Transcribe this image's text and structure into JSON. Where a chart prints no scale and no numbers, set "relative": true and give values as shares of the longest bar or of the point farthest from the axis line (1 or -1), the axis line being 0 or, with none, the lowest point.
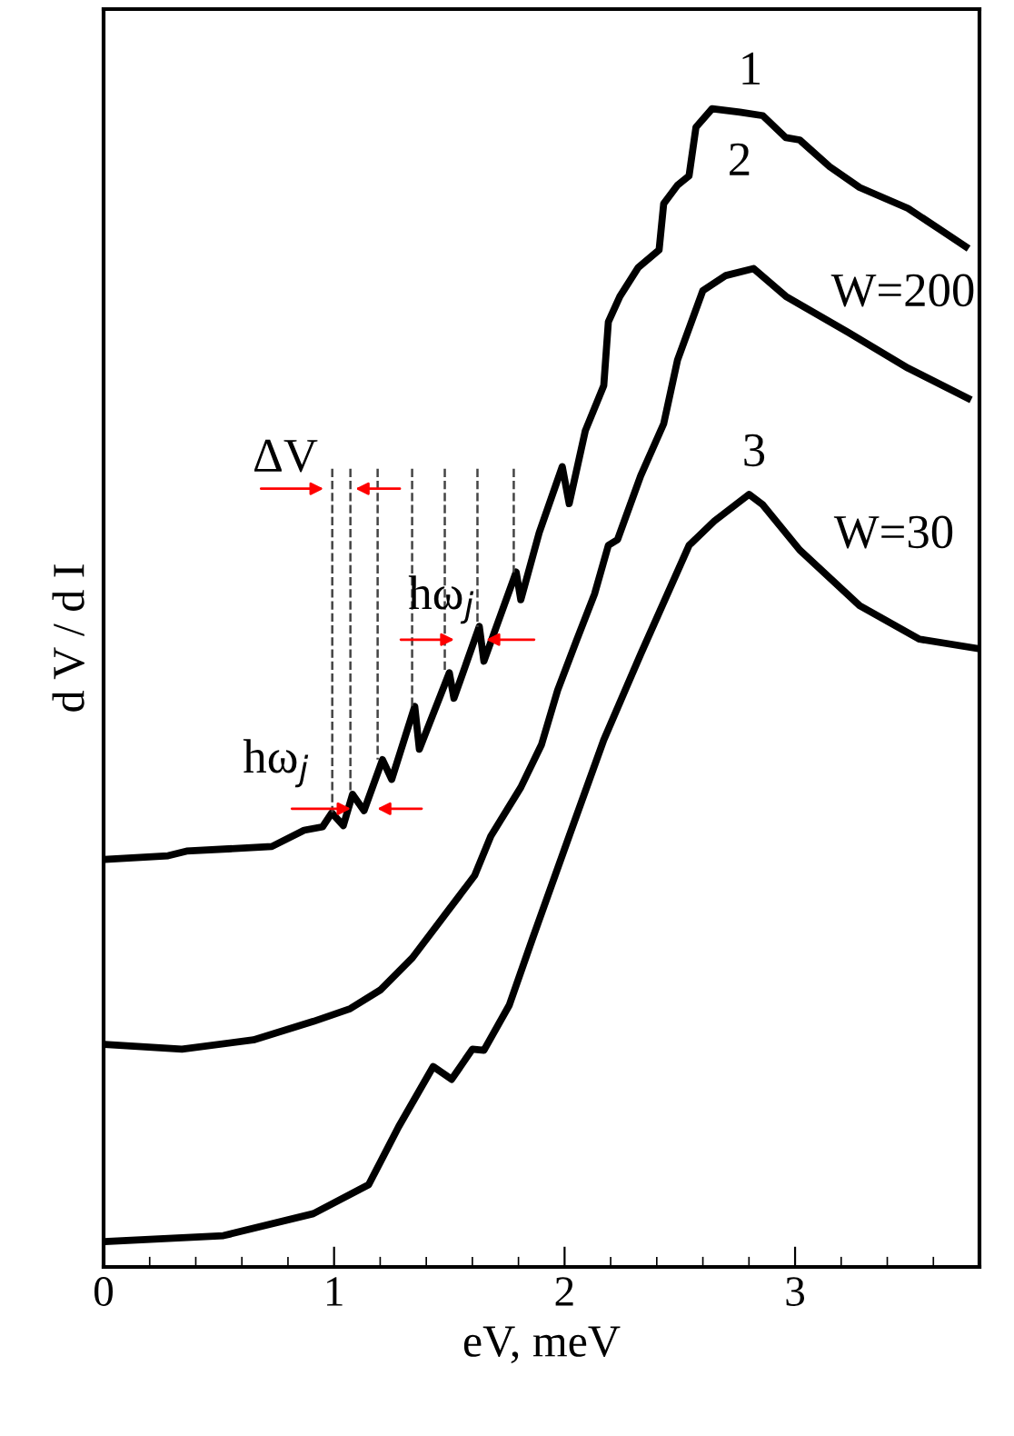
{
  "chart_data": {
    "type": "line",
    "relative": true,
    "xlabel": "eV, meV",
    "ylabel": "d V / d I",
    "xlim": [
      0,
      3.8
    ],
    "xticks": [
      0,
      1,
      2,
      3
    ],
    "tick_labels": "x",
    "grid": false,
    "series": [
      {
        "color": "#000000",
        "x": [
          0.02,
          0.28,
          0.36,
          0.73,
          0.87,
          0.95,
          0.99,
          1.04,
          1.08,
          1.13,
          1.21,
          1.25,
          1.35,
          1.37,
          1.5,
          1.52,
          1.63,
          1.65,
          1.79,
          1.81,
          1.89,
          1.99,
          2.02,
          2.09,
          2.17,
          2.19,
          2.24,
          2.32,
          2.41,
          2.43,
          2.49,
          2.54,
          2.57,
          2.64,
          2.76,
          2.86,
          2.96,
          3.02,
          3.15,
          3.28,
          3.49,
          3.74
        ],
        "values": [
          0.352,
          0.355,
          0.359,
          0.363,
          0.377,
          0.38,
          0.392,
          0.381,
          0.408,
          0.394,
          0.438,
          0.421,
          0.484,
          0.447,
          0.513,
          0.491,
          0.553,
          0.523,
          0.6,
          0.576,
          0.634,
          0.691,
          0.659,
          0.722,
          0.761,
          0.816,
          0.838,
          0.863,
          0.878,
          0.918,
          0.934,
          0.942,
          0.984,
          1.0,
          0.997,
          0.994,
          0.975,
          0.973,
          0.95,
          0.932,
          0.914,
          0.881
        ]
      },
      {
        "color": "#000000",
        "x": [
          0.02,
          0.34,
          0.65,
          0.91,
          1.07,
          1.2,
          1.34,
          1.5,
          1.61,
          1.68,
          1.81,
          1.9,
          1.97,
          2.05,
          2.13,
          2.19,
          2.23,
          2.33,
          2.43,
          2.49,
          2.6,
          2.7,
          2.82,
          2.96,
          3.23,
          3.49,
          3.75
        ],
        "values": [
          0.192,
          0.188,
          0.196,
          0.212,
          0.223,
          0.239,
          0.267,
          0.309,
          0.338,
          0.372,
          0.414,
          0.451,
          0.498,
          0.54,
          0.581,
          0.623,
          0.628,
          0.683,
          0.728,
          0.783,
          0.843,
          0.856,
          0.862,
          0.838,
          0.807,
          0.776,
          0.75
        ]
      },
      {
        "color": "#000000",
        "x": [
          0.02,
          0.52,
          0.91,
          1.15,
          1.28,
          1.43,
          1.51,
          1.6,
          1.65,
          1.76,
          1.86,
          2.02,
          2.17,
          2.33,
          2.54,
          2.65,
          2.8,
          2.86,
          3.02,
          3.28,
          3.54,
          3.79
        ],
        "values": [
          0.022,
          0.027,
          0.046,
          0.071,
          0.121,
          0.173,
          0.162,
          0.188,
          0.187,
          0.226,
          0.283,
          0.372,
          0.455,
          0.529,
          0.623,
          0.644,
          0.667,
          0.658,
          0.619,
          0.571,
          0.542,
          0.534
        ]
      }
    ],
    "annotations": [
      "1",
      "2",
      "3",
      "W=200",
      "W=30",
      "ΔV",
      "hω$_{j}$",
      "hω$_{j}$"
    ]
  }
}
